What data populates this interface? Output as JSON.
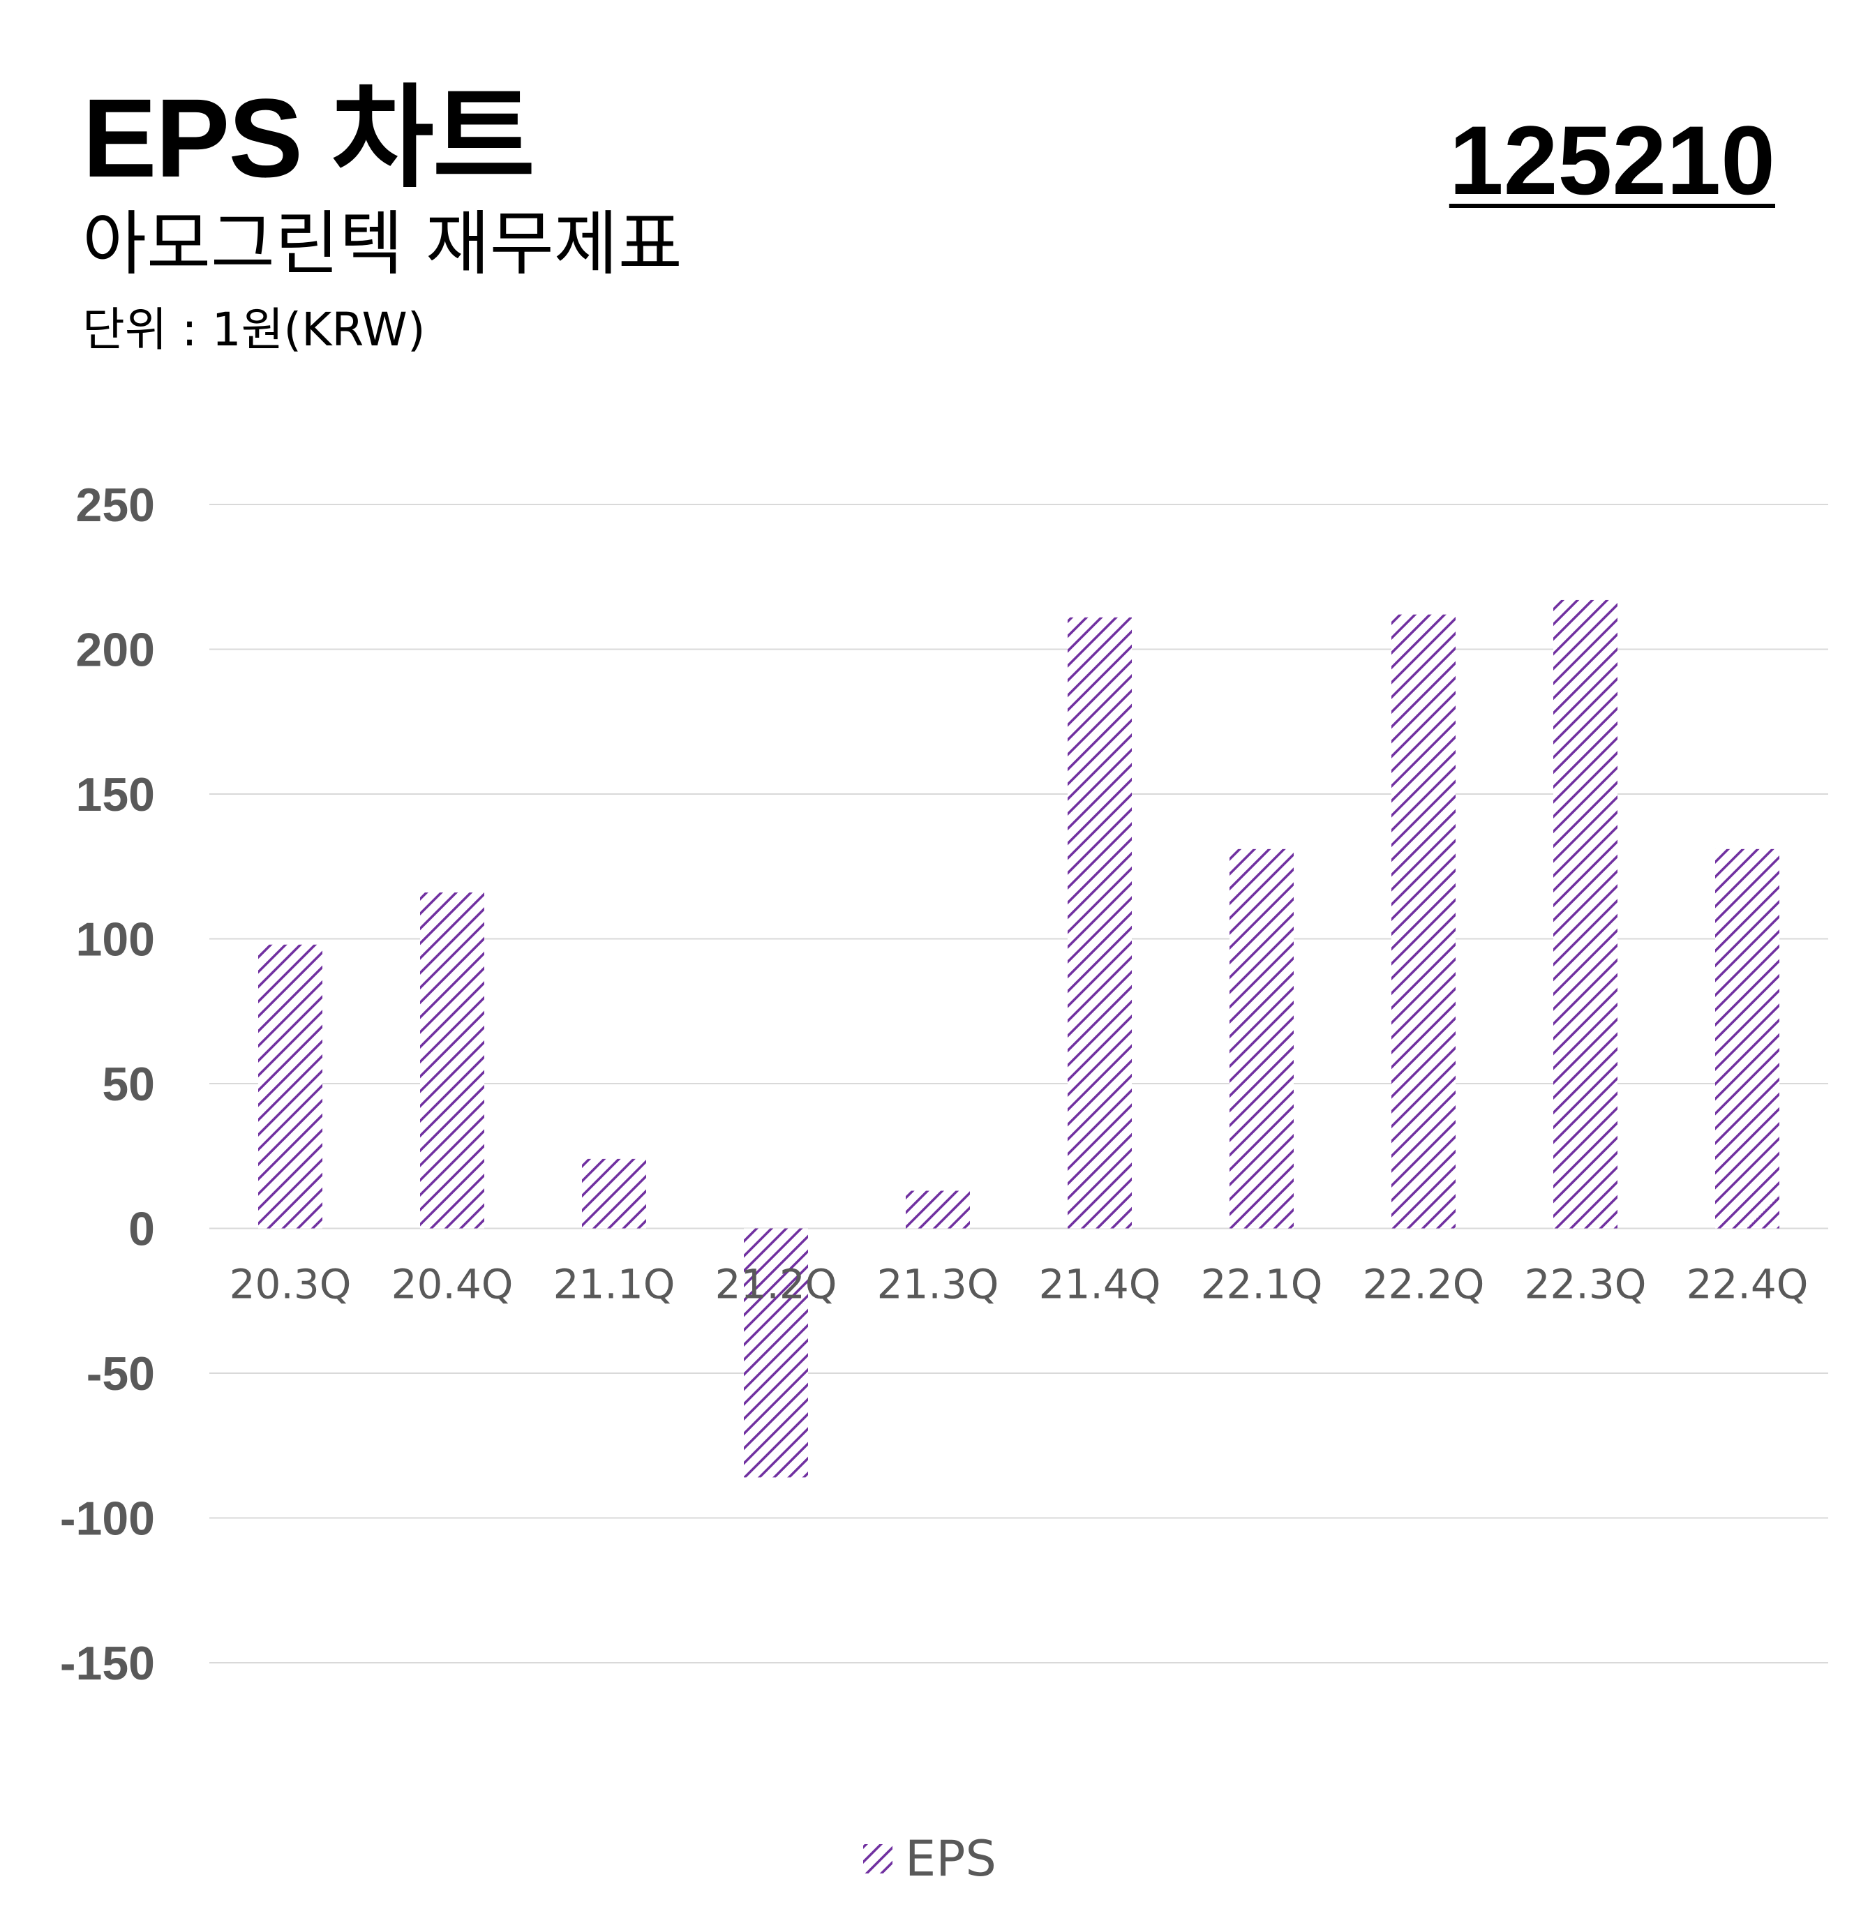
{
  "header": {
    "title": "EPS 차트",
    "subtitle": "아모그린텍 재무제표",
    "unit": "단위 : 1원(KRW)",
    "code": "125210"
  },
  "colors": {
    "bar_stroke": "#7030a0",
    "gridline": "#d9d9d9",
    "axis_text": "#595959"
  },
  "chart_data": {
    "type": "bar",
    "categories": [
      "20.3Q",
      "20.4Q",
      "21.1Q",
      "21.2Q",
      "21.3Q",
      "21.4Q",
      "22.1Q",
      "22.2Q",
      "22.3Q",
      "22.4Q"
    ],
    "series": [
      {
        "name": "EPS",
        "values": [
          98,
          116,
          24,
          -86,
          13,
          211,
          131,
          212,
          217,
          131
        ],
        "pattern": "diagonal-hatch"
      }
    ],
    "ylim": [
      -150,
      250
    ],
    "yticks": [
      250,
      200,
      150,
      100,
      50,
      0,
      -50,
      -100,
      -150
    ],
    "grid": true,
    "legend": "bottom-center"
  }
}
